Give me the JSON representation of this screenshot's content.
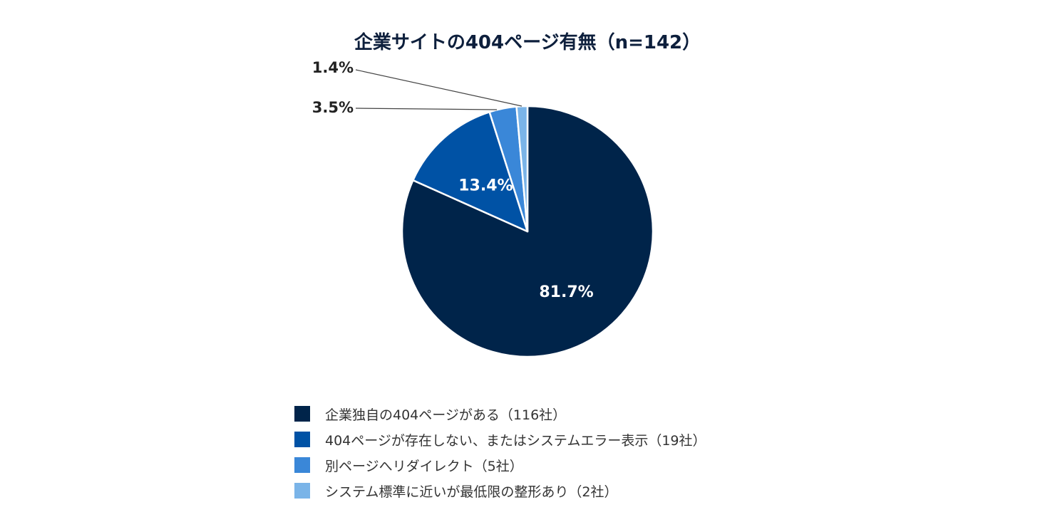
{
  "chart_data": {
    "type": "pie",
    "title": "企業サイトの404ページ有無（n=142）",
    "slices": [
      {
        "label": "企業独自の404ページがある（116社）",
        "value": 81.7,
        "value_label": "81.7%",
        "color": "#00244a",
        "label_position": "inside"
      },
      {
        "label": "404ページが存在しない、またはシステムエラー表示（19社）",
        "value": 13.4,
        "value_label": "13.4%",
        "color": "#0052a5",
        "label_position": "inside"
      },
      {
        "label": "別ページへリダイレクト（5社）",
        "value": 3.5,
        "value_label": "3.5%",
        "color": "#3a87d8",
        "label_position": "outside"
      },
      {
        "label": "システム標準に近いが最低限の整形あり（2社）",
        "value": 1.4,
        "value_label": "1.4%",
        "color": "#7ab4e8",
        "label_position": "outside"
      }
    ],
    "legend_position": "bottom"
  }
}
